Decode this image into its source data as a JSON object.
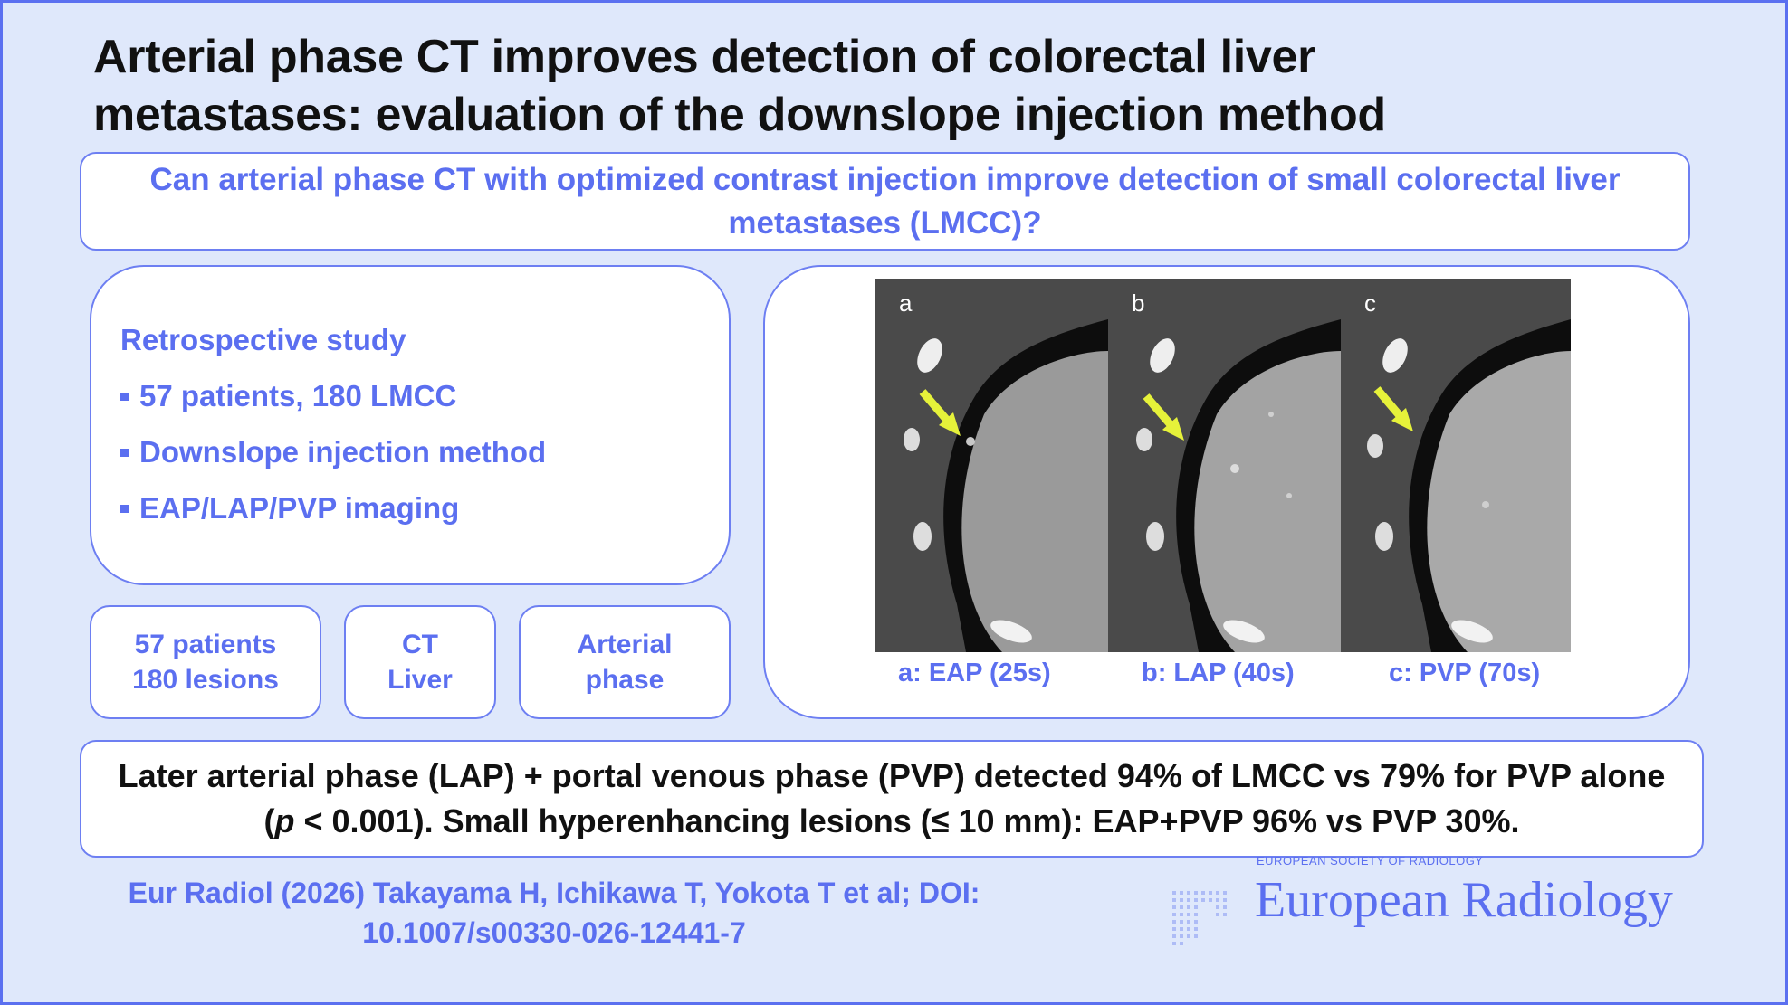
{
  "title": {
    "line1": "Arterial phase CT improves detection of colorectal liver",
    "line2": "metastases: evaluation of the downslope injection method"
  },
  "question": "Can arterial phase CT with optimized contrast injection improve detection of small colorectal liver metastases (LMCC)?",
  "study": {
    "heading": "Retrospective study",
    "items": [
      "57 patients, 180 LMCC",
      "Downslope injection method",
      "EAP/LAP/PVP imaging"
    ]
  },
  "tags": [
    {
      "line1": "57 patients",
      "line2": "180 lesions"
    },
    {
      "line1": "CT",
      "line2": "Liver"
    },
    {
      "line1": "Arterial",
      "line2": "phase"
    }
  ],
  "images": {
    "panels": [
      {
        "letter": "a",
        "caption": "a: EAP (25s)"
      },
      {
        "letter": "b",
        "caption": "b: LAP (40s)"
      },
      {
        "letter": "c",
        "caption": "c: PVP (70s)"
      }
    ],
    "arrow_color": "#e6f23a"
  },
  "result": {
    "part1": "Later arterial phase (LAP) + portal venous phase (PVP) detected 94% of LMCC vs 79% for PVP alone (",
    "p_symbol": "p",
    "part2": " < 0.001). Small hyperenhancing lesions (≤ 10 mm): EAP+PVP 96% vs PVP 30%."
  },
  "citation": "Eur Radiol (2026) Takayama H, Ichikawa T, Yokota T et al; DOI: 10.1007/s00330-026-12441-7",
  "journal": {
    "society": "EUROPEAN SOCIETY OF RADIOLOGY",
    "name": "European Radiology"
  },
  "colors": {
    "accent": "#5b6ff0",
    "background": "#dfe8fb",
    "card": "#ffffff",
    "text": "#111111"
  }
}
